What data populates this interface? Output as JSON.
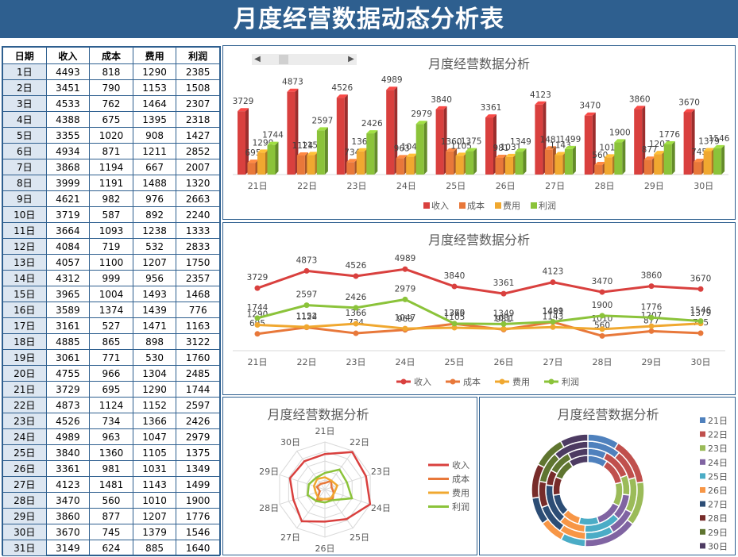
{
  "page_title": "月度经营数据动态分析表",
  "table": {
    "headers": [
      "日期",
      "收入",
      "成本",
      "费用",
      "利润"
    ],
    "rows": [
      [
        "1日",
        4493,
        818,
        1290,
        2385
      ],
      [
        "2日",
        3451,
        790,
        1153,
        1508
      ],
      [
        "3日",
        4533,
        762,
        1464,
        2307
      ],
      [
        "4日",
        4388,
        675,
        1395,
        2318
      ],
      [
        "5日",
        3355,
        1020,
        908,
        1427
      ],
      [
        "6日",
        4934,
        871,
        1211,
        2852
      ],
      [
        "7日",
        3868,
        1194,
        667,
        2007
      ],
      [
        "8日",
        3999,
        1191,
        1488,
        1320
      ],
      [
        "9日",
        4621,
        982,
        976,
        2663
      ],
      [
        "10日",
        3719,
        587,
        892,
        2240
      ],
      [
        "11日",
        3664,
        1093,
        1238,
        1333
      ],
      [
        "12日",
        4084,
        719,
        532,
        2833
      ],
      [
        "13日",
        4057,
        1100,
        1207,
        1750
      ],
      [
        "14日",
        4312,
        999,
        956,
        2357
      ],
      [
        "15日",
        3965,
        1004,
        1493,
        1468
      ],
      [
        "16日",
        3589,
        1374,
        1439,
        776
      ],
      [
        "17日",
        3161,
        527,
        1471,
        1163
      ],
      [
        "18日",
        4885,
        865,
        898,
        3122
      ],
      [
        "19日",
        3061,
        771,
        530,
        1760
      ],
      [
        "20日",
        4755,
        966,
        1304,
        2485
      ],
      [
        "21日",
        3729,
        695,
        1290,
        1744
      ],
      [
        "22日",
        4873,
        1124,
        1152,
        2597
      ],
      [
        "23日",
        4526,
        734,
        1366,
        2426
      ],
      [
        "24日",
        4989,
        963,
        1047,
        2979
      ],
      [
        "25日",
        3840,
        1360,
        1105,
        1375
      ],
      [
        "26日",
        3361,
        981,
        1031,
        1349
      ],
      [
        "27日",
        4123,
        1481,
        1143,
        1499
      ],
      [
        "28日",
        3470,
        560,
        1010,
        1900
      ],
      [
        "29日",
        3860,
        877,
        1207,
        1776
      ],
      [
        "30日",
        3670,
        745,
        1379,
        1546
      ],
      [
        "31日",
        3149,
        624,
        885,
        1640
      ]
    ]
  },
  "colors": {
    "income": "#d9403e",
    "cost": "#e8783a",
    "expense": "#f0a830",
    "profit": "#8bc33a",
    "header": "#2e5f8f",
    "day_cell": "#dce6f1"
  },
  "scrollbar": {
    "left_arrow": "◀",
    "right_arrow": "▶"
  },
  "chart_data": [
    {
      "type": "bar",
      "title": "月度经营数据分析",
      "categories": [
        "21日",
        "22日",
        "23日",
        "24日",
        "25日",
        "26日",
        "27日",
        "28日",
        "29日",
        "30日"
      ],
      "series": [
        {
          "name": "收入",
          "values": [
            3729,
            4873,
            4526,
            4989,
            3840,
            3361,
            4123,
            3470,
            3860,
            3670
          ]
        },
        {
          "name": "成本",
          "values": [
            695,
            1124,
            734,
            963,
            1360,
            981,
            1481,
            560,
            877,
            745
          ]
        },
        {
          "name": "费用",
          "values": [
            1290,
            1152,
            1366,
            1047,
            1105,
            1031,
            1143,
            1010,
            1207,
            1379
          ]
        },
        {
          "name": "利润",
          "values": [
            1744,
            2597,
            2426,
            2979,
            1375,
            1349,
            1499,
            1900,
            1776,
            1546
          ]
        }
      ],
      "legend": "bottom"
    },
    {
      "type": "line",
      "title": "月度经营数据分析",
      "categories": [
        "21日",
        "22日",
        "23日",
        "24日",
        "25日",
        "26日",
        "27日",
        "28日",
        "29日",
        "30日"
      ],
      "series": [
        {
          "name": "收入",
          "values": [
            3729,
            4873,
            4526,
            4989,
            3840,
            3361,
            4123,
            3470,
            3860,
            3670
          ]
        },
        {
          "name": "成本",
          "values": [
            695,
            1124,
            734,
            963,
            1360,
            981,
            1481,
            560,
            877,
            745
          ]
        },
        {
          "name": "费用",
          "values": [
            1290,
            1152,
            1366,
            1047,
            1105,
            1031,
            1143,
            1010,
            1207,
            1379
          ]
        },
        {
          "name": "利润",
          "values": [
            1744,
            2597,
            2426,
            2979,
            1375,
            1349,
            1499,
            1900,
            1776,
            1546
          ]
        }
      ],
      "legend": "bottom"
    },
    {
      "type": "radar",
      "title": "月度经营数据分析",
      "categories": [
        "21日",
        "22日",
        "23日",
        "24日",
        "25日",
        "26日",
        "27日",
        "28日",
        "29日",
        "30日"
      ],
      "series": [
        {
          "name": "收入",
          "values": [
            3729,
            4873,
            4526,
            4989,
            3840,
            3361,
            4123,
            3470,
            3860,
            3670
          ]
        },
        {
          "name": "成本",
          "values": [
            695,
            1124,
            734,
            963,
            1360,
            981,
            1481,
            560,
            877,
            745
          ]
        },
        {
          "name": "费用",
          "values": [
            1290,
            1152,
            1366,
            1047,
            1105,
            1031,
            1143,
            1010,
            1207,
            1379
          ]
        },
        {
          "name": "利润",
          "values": [
            1744,
            2597,
            2426,
            2979,
            1375,
            1349,
            1499,
            1900,
            1776,
            1546
          ]
        }
      ],
      "legend": "right"
    },
    {
      "type": "doughnut",
      "title": "月度经营数据分析",
      "categories": [
        "21日",
        "22日",
        "23日",
        "24日",
        "25日",
        "26日",
        "27日",
        "28日",
        "29日",
        "30日"
      ],
      "category_colors": [
        "#4f81bd",
        "#c0504d",
        "#9bbb59",
        "#8064a2",
        "#4bacc6",
        "#f79646",
        "#2c4d75",
        "#772c2a",
        "#5f7530",
        "#4d3b62"
      ],
      "series": [
        {
          "name": "收入",
          "values": [
            3729,
            4873,
            4526,
            4989,
            3840,
            3361,
            4123,
            3470,
            3860,
            3670
          ]
        },
        {
          "name": "成本",
          "values": [
            695,
            1124,
            734,
            963,
            1360,
            981,
            1481,
            560,
            877,
            745
          ]
        },
        {
          "name": "费用",
          "values": [
            1290,
            1152,
            1366,
            1047,
            1105,
            1031,
            1143,
            1010,
            1207,
            1379
          ]
        },
        {
          "name": "利润",
          "values": [
            1744,
            2597,
            2426,
            2979,
            1375,
            1349,
            1499,
            1900,
            1776,
            1546
          ]
        }
      ],
      "legend": "right"
    }
  ]
}
